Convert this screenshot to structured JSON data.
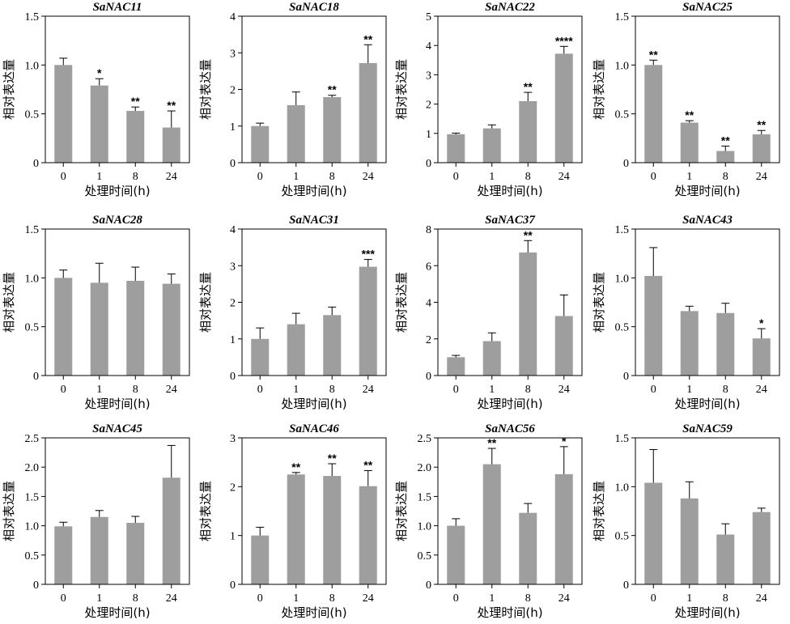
{
  "chart_data": [
    {
      "type": "bar",
      "title": "SaNAC11",
      "categories": [
        "0",
        "1",
        "8",
        "24"
      ],
      "values": [
        1.0,
        0.79,
        0.53,
        0.36
      ],
      "errors": [
        0.07,
        0.07,
        0.04,
        0.17
      ],
      "significance": [
        "",
        "*",
        "**",
        "**"
      ],
      "ylim": [
        0,
        1.5
      ],
      "yticks": [
        0,
        0.5,
        1.0,
        1.5
      ],
      "ytick_labels": [
        "0",
        "0.5",
        "1.0",
        "1.5"
      ],
      "xlabel": "处理时间(h)",
      "ylabel": "相对表达量"
    },
    {
      "type": "bar",
      "title": "SaNAC18",
      "categories": [
        "0",
        "1",
        "8",
        "24"
      ],
      "values": [
        1.0,
        1.57,
        1.79,
        2.72
      ],
      "errors": [
        0.08,
        0.36,
        0.05,
        0.5
      ],
      "significance": [
        "",
        "",
        "**",
        "**"
      ],
      "ylim": [
        0,
        4
      ],
      "yticks": [
        0,
        1,
        2,
        3,
        4
      ],
      "ytick_labels": [
        "0",
        "1",
        "2",
        "3",
        "4"
      ],
      "xlabel": "处理时间(h)",
      "ylabel": "相对表达量"
    },
    {
      "type": "bar",
      "title": "SaNAC22",
      "categories": [
        "0",
        "1",
        "8",
        "24"
      ],
      "values": [
        0.97,
        1.17,
        2.1,
        3.72
      ],
      "errors": [
        0.04,
        0.12,
        0.3,
        0.25
      ],
      "significance": [
        "",
        "",
        "**",
        "****"
      ],
      "ylim": [
        0,
        5
      ],
      "yticks": [
        0,
        1,
        2,
        3,
        4,
        5
      ],
      "ytick_labels": [
        "0",
        "1",
        "2",
        "3",
        "4",
        "5"
      ],
      "xlabel": "处理时间(h)",
      "ylabel": "相对表达量"
    },
    {
      "type": "bar",
      "title": "SaNAC25",
      "categories": [
        "0",
        "1",
        "8",
        "24"
      ],
      "values": [
        1.0,
        0.41,
        0.12,
        0.29
      ],
      "errors": [
        0.05,
        0.02,
        0.05,
        0.04
      ],
      "significance": [
        "**",
        "**",
        "**",
        "**"
      ],
      "ylim": [
        0,
        1.5
      ],
      "yticks": [
        0,
        0.5,
        1.0,
        1.5
      ],
      "ytick_labels": [
        "0",
        "0.5",
        "1.0",
        "1.5"
      ],
      "xlabel": "处理时间(h)",
      "ylabel": "相对表达量"
    },
    {
      "type": "bar",
      "title": "SaNAC28",
      "categories": [
        "0",
        "1",
        "8",
        "24"
      ],
      "values": [
        1.0,
        0.95,
        0.97,
        0.94
      ],
      "errors": [
        0.08,
        0.2,
        0.14,
        0.1
      ],
      "significance": [
        "",
        "",
        "",
        ""
      ],
      "ylim": [
        0,
        1.5
      ],
      "yticks": [
        0,
        0.5,
        1.0,
        1.5
      ],
      "ytick_labels": [
        "0",
        "0.5",
        "1.0",
        "1.5"
      ],
      "xlabel": "处理时间(h)",
      "ylabel": "相对表达量"
    },
    {
      "type": "bar",
      "title": "SaNAC31",
      "categories": [
        "0",
        "1",
        "8",
        "24"
      ],
      "values": [
        1.0,
        1.4,
        1.65,
        2.97
      ],
      "errors": [
        0.3,
        0.3,
        0.22,
        0.2
      ],
      "significance": [
        "",
        "",
        "",
        "***"
      ],
      "ylim": [
        0,
        4
      ],
      "yticks": [
        0,
        1,
        2,
        3,
        4
      ],
      "ytick_labels": [
        "0",
        "1",
        "2",
        "3",
        "4"
      ],
      "xlabel": "处理时间(h)",
      "ylabel": "相对表达量"
    },
    {
      "type": "bar",
      "title": "SaNAC37",
      "categories": [
        "0",
        "1",
        "8",
        "24"
      ],
      "values": [
        1.0,
        1.88,
        6.72,
        3.25
      ],
      "errors": [
        0.1,
        0.45,
        0.65,
        1.15
      ],
      "significance": [
        "",
        "",
        "**",
        ""
      ],
      "ylim": [
        0,
        8
      ],
      "yticks": [
        0,
        2,
        4,
        6,
        8
      ],
      "ytick_labels": [
        "0",
        "2",
        "4",
        "6",
        "8"
      ],
      "xlabel": "处理时间(h)",
      "ylabel": "相对表达量"
    },
    {
      "type": "bar",
      "title": "SaNAC43",
      "categories": [
        "0",
        "1",
        "8",
        "24"
      ],
      "values": [
        1.02,
        0.66,
        0.64,
        0.38
      ],
      "errors": [
        0.29,
        0.05,
        0.1,
        0.1
      ],
      "significance": [
        "",
        "",
        "",
        "*"
      ],
      "ylim": [
        0,
        1.5
      ],
      "yticks": [
        0,
        0.5,
        1.0,
        1.5
      ],
      "ytick_labels": [
        "0",
        "0.5",
        "1.0",
        "1.5"
      ],
      "xlabel": "处理时间(h)",
      "ylabel": "相对表达量"
    },
    {
      "type": "bar",
      "title": "SaNAC45",
      "categories": [
        "0",
        "1",
        "8",
        "24"
      ],
      "values": [
        0.99,
        1.15,
        1.05,
        1.82
      ],
      "errors": [
        0.07,
        0.11,
        0.11,
        0.55
      ],
      "significance": [
        "",
        "",
        "",
        ""
      ],
      "ylim": [
        0,
        2.5
      ],
      "yticks": [
        0,
        0.5,
        1.0,
        1.5,
        2.0,
        2.5
      ],
      "ytick_labels": [
        "0",
        "0.5",
        "1.0",
        "1.5",
        "2.0",
        "2.5"
      ],
      "xlabel": "处理时间(h)",
      "ylabel": "相对表达量"
    },
    {
      "type": "bar",
      "title": "SaNAC46",
      "categories": [
        "0",
        "1",
        "8",
        "24"
      ],
      "values": [
        1.0,
        2.25,
        2.22,
        2.01
      ],
      "errors": [
        0.17,
        0.04,
        0.25,
        0.32
      ],
      "significance": [
        "",
        "**",
        "**",
        "**"
      ],
      "ylim": [
        0,
        3
      ],
      "yticks": [
        0,
        1,
        2,
        3
      ],
      "ytick_labels": [
        "0",
        "1",
        "2",
        "3"
      ],
      "xlabel": "处理时间(h)",
      "ylabel": "相对表达量"
    },
    {
      "type": "bar",
      "title": "SaNAC56",
      "categories": [
        "0",
        "1",
        "8",
        "24"
      ],
      "values": [
        1.0,
        2.05,
        1.22,
        1.88
      ],
      "errors": [
        0.12,
        0.27,
        0.16,
        0.47
      ],
      "significance": [
        "",
        "**",
        "",
        "*"
      ],
      "ylim": [
        0,
        2.5
      ],
      "yticks": [
        0,
        0.5,
        1.0,
        1.5,
        2.0,
        2.5
      ],
      "ytick_labels": [
        "0",
        "0.5",
        "1.0",
        "1.5",
        "2.0",
        "2.5"
      ],
      "xlabel": "处理时间(h)",
      "ylabel": "相对表达量"
    },
    {
      "type": "bar",
      "title": "SaNAC59",
      "categories": [
        "0",
        "1",
        "8",
        "24"
      ],
      "values": [
        1.04,
        0.88,
        0.51,
        0.74
      ],
      "errors": [
        0.34,
        0.17,
        0.11,
        0.04
      ],
      "significance": [
        "",
        "",
        "",
        ""
      ],
      "ylim": [
        0,
        1.5
      ],
      "yticks": [
        0,
        0.5,
        1.0,
        1.5
      ],
      "ytick_labels": [
        "0",
        "0.5",
        "1.0",
        "1.5"
      ],
      "xlabel": "处理时间(h)",
      "ylabel": "相对表达量"
    }
  ],
  "colors": {
    "bar": "#9e9e9e",
    "axis": "#000000",
    "text": "#000000"
  }
}
